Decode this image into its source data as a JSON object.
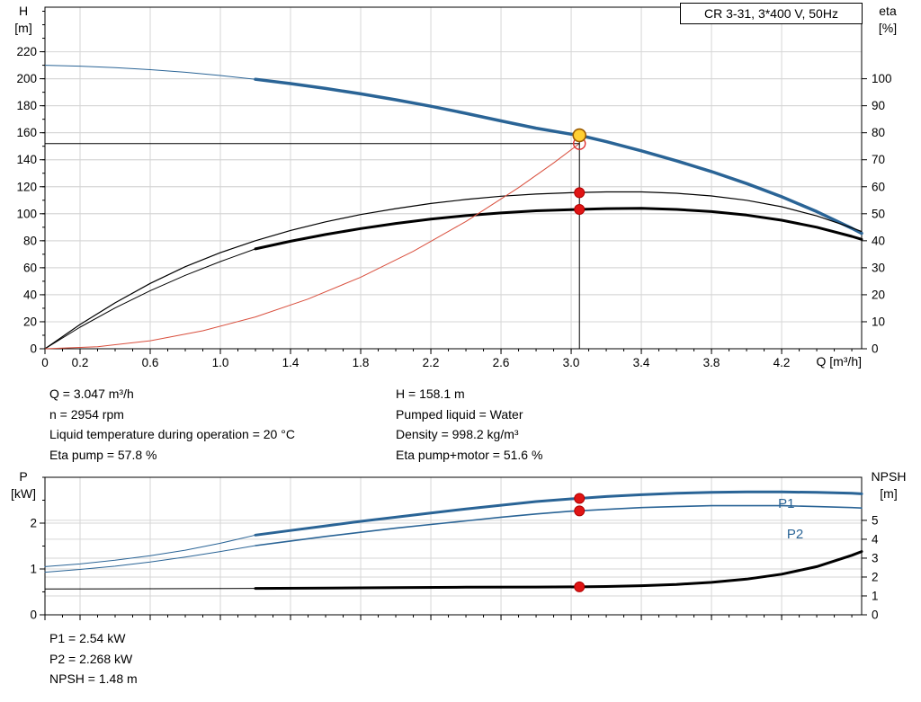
{
  "chart_data": [
    {
      "type": "line",
      "title": "CR 3-31, 3*400 V, 50Hz",
      "grid": "#d6d6d6",
      "x_axis": {
        "label": "Q [m³/h]",
        "min": 0,
        "max": 4.656,
        "minor": 0.1,
        "major_ticks": [
          {
            "v": 0,
            "label": "0"
          },
          {
            "v": 0.2,
            "label": "0.2"
          },
          {
            "v": 0.6,
            "label": "0.6"
          },
          {
            "v": 1.0,
            "label": "1.0"
          },
          {
            "v": 1.4,
            "label": "1.4"
          },
          {
            "v": 1.8,
            "label": "1.8"
          },
          {
            "v": 2.2,
            "label": "2.2"
          },
          {
            "v": 2.6,
            "label": "2.6"
          },
          {
            "v": 3.0,
            "label": "3.0"
          },
          {
            "v": 3.4,
            "label": "3.4"
          },
          {
            "v": 3.8,
            "label": "3.8"
          },
          {
            "v": 4.2,
            "label": "4.2"
          }
        ]
      },
      "left_axis": {
        "name": "H",
        "unit": "[m]",
        "min": 0,
        "max": 253,
        "minor": 10,
        "ticks": [
          0,
          20,
          40,
          60,
          80,
          100,
          120,
          140,
          160,
          180,
          200,
          220
        ]
      },
      "right_axis": {
        "name": "eta",
        "unit": "[%]",
        "min": 0,
        "max": 126.5,
        "ticks": [
          0,
          10,
          20,
          30,
          40,
          50,
          60,
          70,
          80,
          90,
          100
        ]
      },
      "series": [
        {
          "name": "qh-curve-thin",
          "axis": "left",
          "color": "#2a6496",
          "width": 1,
          "points": [
            [
              0,
              210
            ],
            [
              0.2,
              209.3
            ],
            [
              0.4,
              208.2
            ],
            [
              0.6,
              206.7
            ],
            [
              0.8,
              204.8
            ],
            [
              1,
              202.4
            ],
            [
              1.2,
              199.6
            ]
          ]
        },
        {
          "name": "qh-curve",
          "axis": "left",
          "color": "#2a6496",
          "width": 3.5,
          "points": [
            [
              1.2,
              199.6
            ],
            [
              1.4,
              196.4
            ],
            [
              1.6,
              192.8
            ],
            [
              1.8,
              188.8
            ],
            [
              2,
              184.4
            ],
            [
              2.2,
              179.6
            ],
            [
              2.4,
              174.4
            ],
            [
              2.6,
              168.8
            ],
            [
              2.8,
              163.4
            ],
            [
              3,
              158.9
            ],
            [
              3.047,
              158.1
            ],
            [
              3.2,
              153.4
            ],
            [
              3.4,
              146.6
            ],
            [
              3.6,
              139.2
            ],
            [
              3.8,
              131.2
            ],
            [
              4,
              122.4
            ],
            [
              4.2,
              112.6
            ],
            [
              4.4,
              101.6
            ],
            [
              4.6,
              89.2
            ],
            [
              4.656,
              85.5
            ]
          ]
        },
        {
          "name": "eta-pump-curve",
          "axis": "right",
          "color": "#000000",
          "width": 1.2,
          "points": [
            [
              0,
              0
            ],
            [
              0.2,
              9
            ],
            [
              0.4,
              17
            ],
            [
              0.6,
              24.2
            ],
            [
              0.8,
              30.4
            ],
            [
              1,
              35.6
            ],
            [
              1.2,
              40
            ],
            [
              1.4,
              43.8
            ],
            [
              1.6,
              47
            ],
            [
              1.8,
              49.7
            ],
            [
              2,
              51.9
            ],
            [
              2.2,
              53.8
            ],
            [
              2.4,
              55.3
            ],
            [
              2.6,
              56.5
            ],
            [
              2.8,
              57.3
            ],
            [
              3,
              57.8
            ],
            [
              3.2,
              58.1
            ],
            [
              3.4,
              58.1
            ],
            [
              3.6,
              57.6
            ],
            [
              3.8,
              56.6
            ],
            [
              4,
              55
            ],
            [
              4.2,
              52.6
            ],
            [
              4.4,
              49.2
            ],
            [
              4.6,
              44.8
            ],
            [
              4.656,
              43.4
            ]
          ]
        },
        {
          "name": "eta-pump-motor-thin",
          "axis": "right",
          "color": "#000000",
          "width": 1,
          "points": [
            [
              0,
              0
            ],
            [
              0.2,
              8
            ],
            [
              0.4,
              15.1
            ],
            [
              0.6,
              21.5
            ],
            [
              0.8,
              27.2
            ],
            [
              1,
              32.3
            ],
            [
              1.2,
              37
            ]
          ]
        },
        {
          "name": "eta-pump-motor-curve",
          "axis": "right",
          "color": "#000000",
          "width": 3,
          "points": [
            [
              1.2,
              37
            ],
            [
              1.4,
              39.8
            ],
            [
              1.6,
              42.3
            ],
            [
              1.8,
              44.5
            ],
            [
              2,
              46.4
            ],
            [
              2.2,
              48
            ],
            [
              2.4,
              49.3
            ],
            [
              2.6,
              50.3
            ],
            [
              2.8,
              51.1
            ],
            [
              3,
              51.5
            ],
            [
              3.047,
              51.6
            ],
            [
              3.2,
              51.9
            ],
            [
              3.4,
              52
            ],
            [
              3.6,
              51.6
            ],
            [
              3.8,
              50.8
            ],
            [
              4,
              49.5
            ],
            [
              4.2,
              47.6
            ],
            [
              4.4,
              45
            ],
            [
              4.6,
              41.6
            ],
            [
              4.656,
              40.5
            ]
          ]
        },
        {
          "name": "system-curve",
          "axis": "left",
          "color": "#d94f3d",
          "width": 1,
          "points": [
            [
              0,
              0
            ],
            [
              0.3,
              1.5
            ],
            [
              0.6,
              5.9
            ],
            [
              0.9,
              13.3
            ],
            [
              1.2,
              23.6
            ],
            [
              1.5,
              36.8
            ],
            [
              1.8,
              53
            ],
            [
              2.1,
              72.2
            ],
            [
              2.4,
              94.3
            ],
            [
              2.7,
              119.3
            ],
            [
              2.9,
              137.6
            ],
            [
              3.047,
              152
            ]
          ]
        }
      ],
      "guides": [
        {
          "type": "h",
          "y": 152,
          "x1": 0,
          "x2": 3.047,
          "axis": "left"
        },
        {
          "type": "v",
          "x": 3.047,
          "y1": 0,
          "y2": 158.1,
          "axis": "left"
        }
      ],
      "markers": [
        {
          "name": "system-point",
          "x": 3.047,
          "y": 152,
          "axis": "left",
          "r": 6.5,
          "fill": "none",
          "stroke": "#e03030",
          "sw": 1.4
        },
        {
          "name": "duty-point",
          "x": 3.047,
          "y": 158.1,
          "axis": "left",
          "r": 7,
          "fill": "#ffcf33",
          "stroke": "#9a5a00",
          "sw": 1.6
        },
        {
          "name": "eta-pump-point",
          "x": 3.047,
          "y": 57.8,
          "axis": "right",
          "r": 5.5,
          "fill": "#e01414",
          "stroke": "#b00000",
          "sw": 1
        },
        {
          "name": "eta-pump-motor-point",
          "x": 3.047,
          "y": 51.6,
          "axis": "right",
          "r": 5.5,
          "fill": "#e01414",
          "stroke": "#b00000",
          "sw": 1
        }
      ]
    },
    {
      "type": "line",
      "title": "",
      "grid": "#d6d6d6",
      "x_axis": {
        "label": "",
        "min": 0,
        "max": 4.656,
        "minor": 0.1,
        "major_ticks": [
          {
            "v": 0,
            "label": "0"
          },
          {
            "v": 0.2,
            "label": "0.2"
          },
          {
            "v": 0.6,
            "label": "0.6"
          },
          {
            "v": 1.0,
            "label": "1.0"
          },
          {
            "v": 1.4,
            "label": "1.4"
          },
          {
            "v": 1.8,
            "label": "1.8"
          },
          {
            "v": 2.2,
            "label": "2.2"
          },
          {
            "v": 2.6,
            "label": "2.6"
          },
          {
            "v": 3.0,
            "label": "3.0"
          },
          {
            "v": 3.4,
            "label": "3.4"
          },
          {
            "v": 3.8,
            "label": "3.8"
          },
          {
            "v": 4.2,
            "label": "4.2"
          }
        ]
      },
      "left_axis": {
        "name": "P",
        "unit": "[kW]",
        "min": 0,
        "max": 3,
        "minor": 0.5,
        "ticks": [
          0,
          1,
          2
        ]
      },
      "right_axis": {
        "name": "NPSH",
        "unit": "[m]",
        "min": 0,
        "max": 7.28,
        "ticks": [
          0,
          1,
          2,
          3,
          4,
          5
        ]
      },
      "series": [
        {
          "name": "p1-thin",
          "axis": "left",
          "color": "#2a6496",
          "width": 1,
          "points": [
            [
              0,
              1.05
            ],
            [
              0.2,
              1.11
            ],
            [
              0.4,
              1.19
            ],
            [
              0.6,
              1.29
            ],
            [
              0.8,
              1.41
            ],
            [
              1,
              1.56
            ],
            [
              1.2,
              1.74
            ]
          ]
        },
        {
          "name": "p1-curve",
          "axis": "left",
          "color": "#2a6496",
          "width": 3,
          "points": [
            [
              1.2,
              1.74
            ],
            [
              1.4,
              1.84
            ],
            [
              1.6,
              1.94
            ],
            [
              1.8,
              2.04
            ],
            [
              2,
              2.13
            ],
            [
              2.2,
              2.22
            ],
            [
              2.4,
              2.31
            ],
            [
              2.6,
              2.39
            ],
            [
              2.8,
              2.47
            ],
            [
              3,
              2.53
            ],
            [
              3.047,
              2.54
            ],
            [
              3.2,
              2.58
            ],
            [
              3.4,
              2.62
            ],
            [
              3.6,
              2.65
            ],
            [
              3.8,
              2.67
            ],
            [
              4,
              2.68
            ],
            [
              4.2,
              2.68
            ],
            [
              4.4,
              2.67
            ],
            [
              4.6,
              2.65
            ],
            [
              4.656,
              2.64
            ]
          ]
        },
        {
          "name": "p2-thin",
          "axis": "left",
          "color": "#2a6496",
          "width": 1,
          "points": [
            [
              0,
              0.93
            ],
            [
              0.2,
              0.99
            ],
            [
              0.4,
              1.06
            ],
            [
              0.6,
              1.15
            ],
            [
              0.8,
              1.26
            ],
            [
              1,
              1.38
            ],
            [
              1.2,
              1.51
            ]
          ]
        },
        {
          "name": "p2-curve",
          "axis": "left",
          "color": "#2a6496",
          "width": 1.6,
          "points": [
            [
              1.2,
              1.51
            ],
            [
              1.4,
              1.61
            ],
            [
              1.6,
              1.71
            ],
            [
              1.8,
              1.8
            ],
            [
              2,
              1.89
            ],
            [
              2.2,
              1.97
            ],
            [
              2.4,
              2.05
            ],
            [
              2.6,
              2.13
            ],
            [
              2.8,
              2.2
            ],
            [
              3,
              2.26
            ],
            [
              3.047,
              2.268
            ],
            [
              3.2,
              2.3
            ],
            [
              3.4,
              2.34
            ],
            [
              3.6,
              2.36
            ],
            [
              3.8,
              2.38
            ],
            [
              4,
              2.38
            ],
            [
              4.2,
              2.38
            ],
            [
              4.4,
              2.36
            ],
            [
              4.6,
              2.34
            ],
            [
              4.656,
              2.33
            ]
          ]
        },
        {
          "name": "npsh-thin",
          "axis": "right",
          "color": "#000000",
          "width": 1,
          "points": [
            [
              0,
              1.37
            ],
            [
              0.6,
              1.38
            ],
            [
              1.2,
              1.4
            ]
          ]
        },
        {
          "name": "npsh-curve",
          "axis": "right",
          "color": "#000000",
          "width": 3,
          "points": [
            [
              1.2,
              1.4
            ],
            [
              1.6,
              1.42
            ],
            [
              2,
              1.44
            ],
            [
              2.4,
              1.46
            ],
            [
              2.8,
              1.47
            ],
            [
              3.047,
              1.48
            ],
            [
              3.2,
              1.5
            ],
            [
              3.4,
              1.54
            ],
            [
              3.6,
              1.61
            ],
            [
              3.8,
              1.72
            ],
            [
              4,
              1.89
            ],
            [
              4.2,
              2.15
            ],
            [
              4.4,
              2.55
            ],
            [
              4.6,
              3.15
            ],
            [
              4.656,
              3.35
            ]
          ]
        }
      ],
      "labels": [
        {
          "text": "P1",
          "x": 4.18,
          "y": 2.33,
          "axis": "left",
          "color": "#2a6496"
        },
        {
          "text": "P2",
          "x": 4.23,
          "y": 1.67,
          "axis": "left",
          "color": "#2a6496"
        }
      ],
      "markers": [
        {
          "name": "p1-point",
          "x": 3.047,
          "y": 2.54,
          "axis": "left",
          "r": 5.5,
          "fill": "#e01414",
          "stroke": "#b00000",
          "sw": 1
        },
        {
          "name": "p2-point",
          "x": 3.047,
          "y": 2.268,
          "axis": "left",
          "r": 5.5,
          "fill": "#e01414",
          "stroke": "#b00000",
          "sw": 1
        },
        {
          "name": "npsh-point",
          "x": 3.047,
          "y": 1.48,
          "axis": "right",
          "r": 5.5,
          "fill": "#e01414",
          "stroke": "#b00000",
          "sw": 1
        }
      ]
    }
  ],
  "info": {
    "left": [
      "Q = 3.047 m³/h",
      "n = 2954 rpm",
      "Liquid temperature during operation = 20 °C",
      "Eta pump = 57.8 %"
    ],
    "right": [
      "H = 158.1 m",
      "Pumped liquid = Water",
      "Density = 998.2 kg/m³",
      "Eta pump+motor = 51.6 %"
    ]
  },
  "results": [
    "P1 = 2.54 kW",
    "P2 = 2.268 kW",
    "NPSH = 1.48 m"
  ]
}
